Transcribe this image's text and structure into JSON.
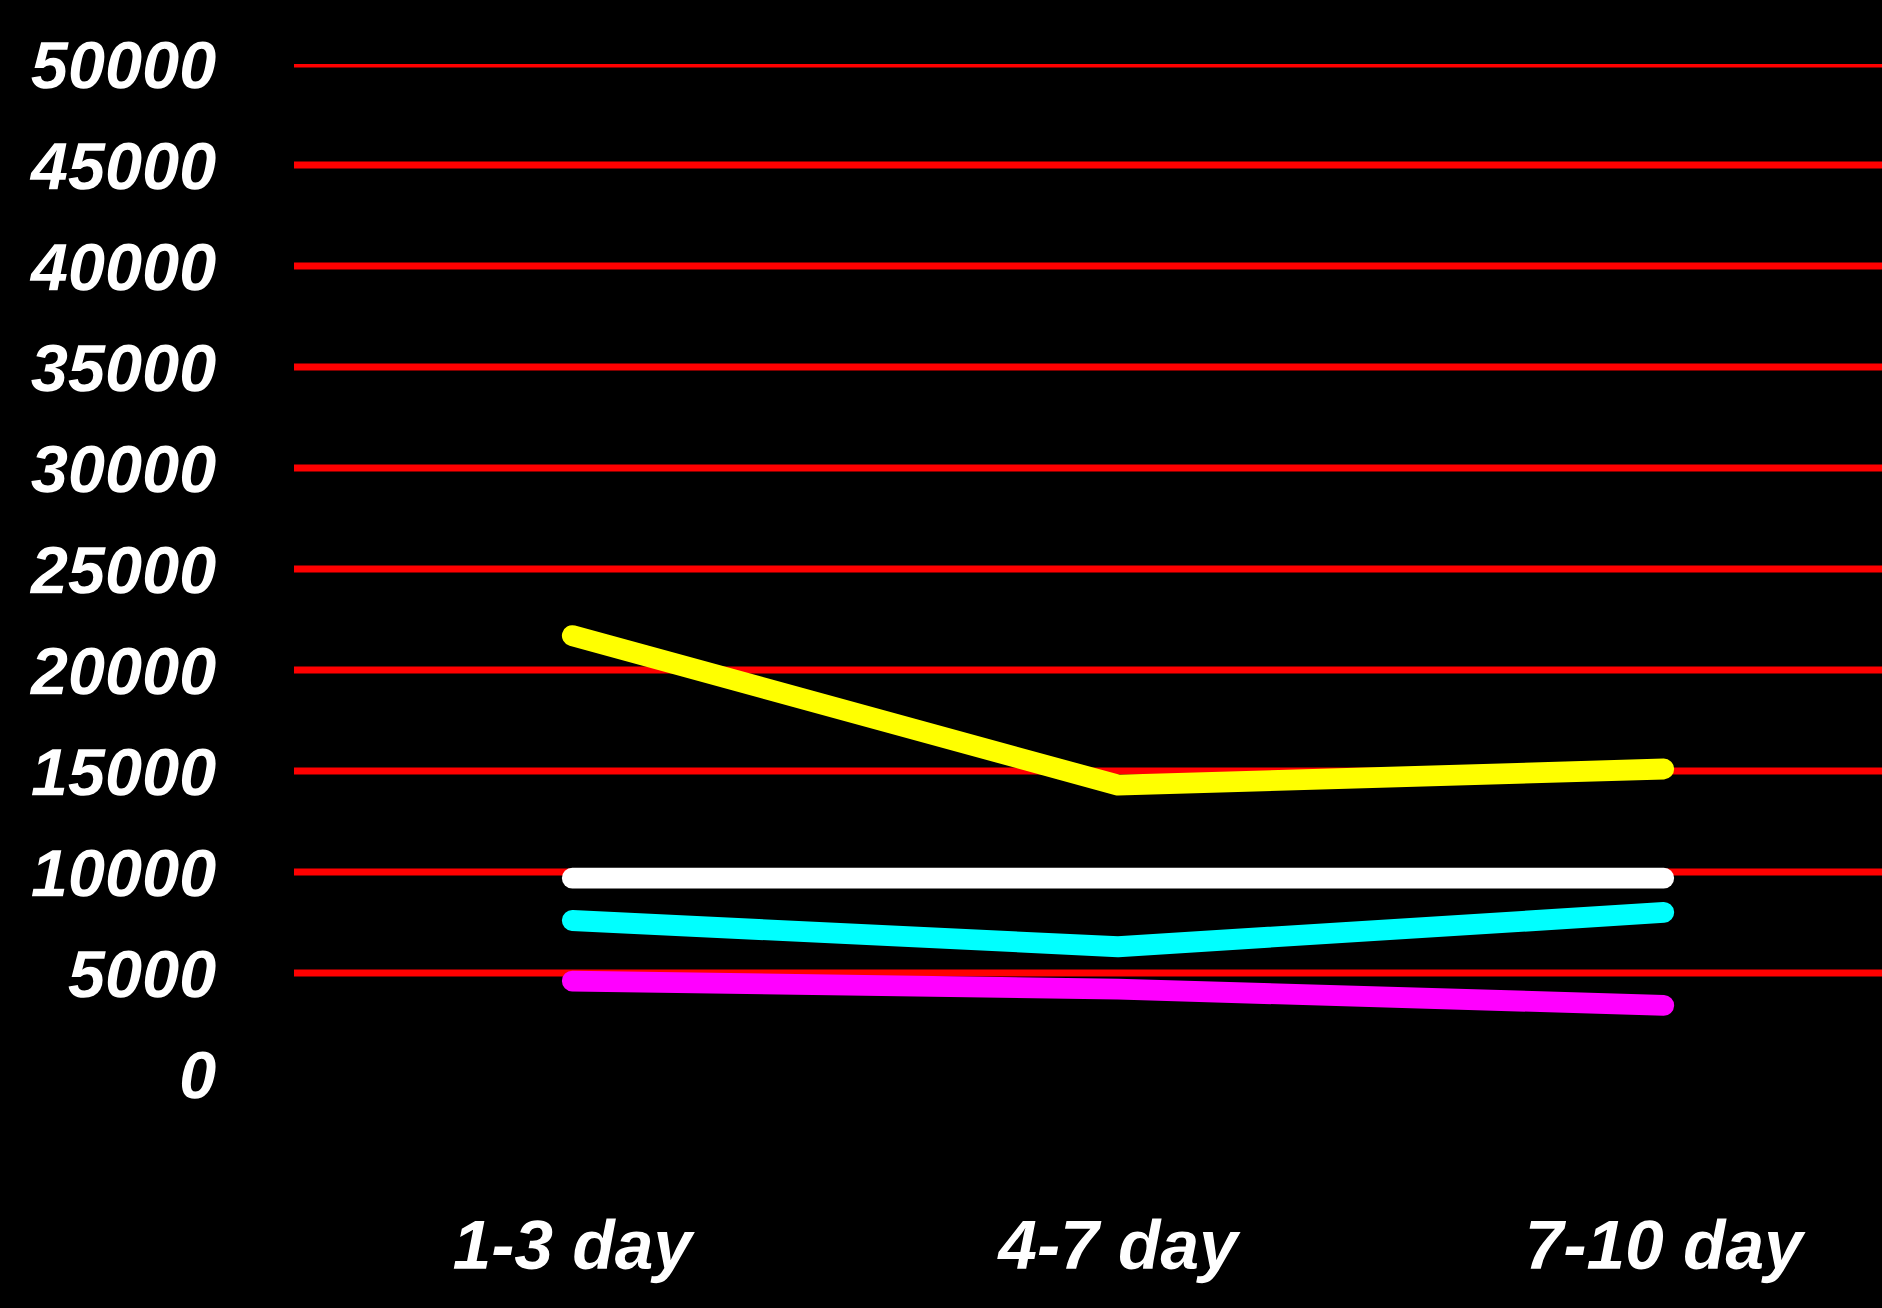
{
  "chart_data": {
    "type": "line",
    "categories": [
      "1-3 day",
      "4-7 day",
      "7-10 day"
    ],
    "series": [
      {
        "color": "#ffff00",
        "values": [
          21700,
          14300,
          15100
        ]
      },
      {
        "color": "#ffffff",
        "values": [
          9700,
          9700,
          9700
        ]
      },
      {
        "color": "#00ffff",
        "values": [
          7600,
          6300,
          8000
        ]
      },
      {
        "color": "#ff00ff",
        "values": [
          4600,
          4200,
          3400
        ]
      }
    ],
    "ylim": [
      0,
      50000
    ],
    "yticks": [
      0,
      5000,
      10000,
      15000,
      20000,
      25000,
      30000,
      35000,
      40000,
      45000,
      50000
    ],
    "grid": "y",
    "line_style": "solid"
  }
}
